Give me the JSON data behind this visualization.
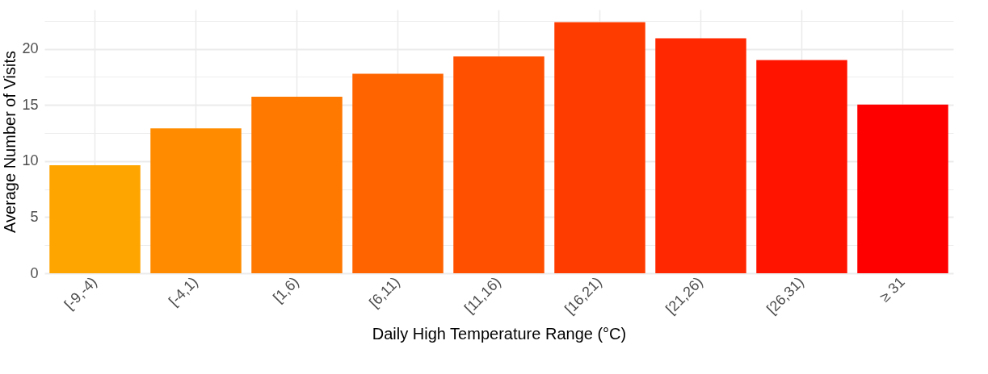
{
  "chart_data": {
    "type": "bar",
    "xlabel": "Daily High Temperature Range (°C)",
    "ylabel": "Average Number of Visits",
    "categories": [
      "[-9,-4)",
      "[-4,1)",
      "[1,6)",
      "[6,11)",
      "[11,16)",
      "[16,21)",
      "[21,26)",
      "[26,31)",
      "≥ 31"
    ],
    "values": [
      9.63,
      12.92,
      15.73,
      17.79,
      19.34,
      22.38,
      20.95,
      19.0,
      15.04
    ],
    "colors": [
      "#ffa500",
      "#ff8c00",
      "#ff7800",
      "#ff6400",
      "#ff5000",
      "#ff3c00",
      "#ff2800",
      "#ff1400",
      "#ff0000"
    ],
    "ylim": [
      0,
      23.5
    ],
    "yticks": [
      0,
      {
        "value": 2.5,
        "label": null
      },
      5,
      {
        "value": 7.5,
        "label": null
      },
      10,
      {
        "value": 12.5,
        "label": null
      },
      15,
      {
        "value": 17.5,
        "label": null
      },
      20,
      {
        "value": 22.5,
        "label": null
      }
    ],
    "grid": true
  }
}
